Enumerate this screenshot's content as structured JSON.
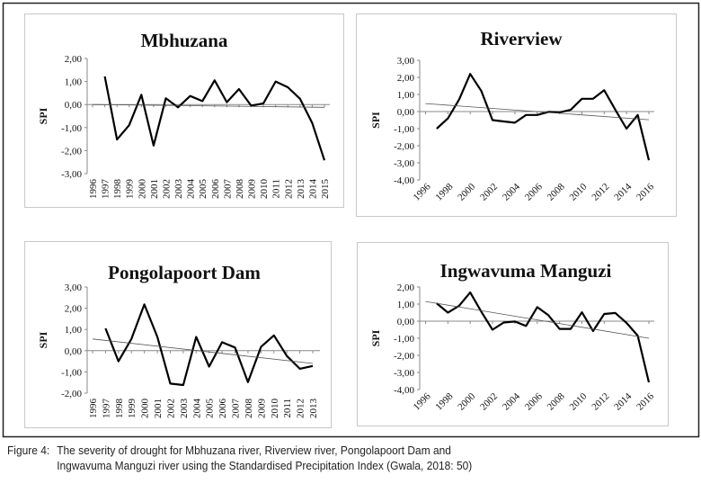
{
  "chart_data": [
    {
      "type": "line",
      "title": "Mbhuzana",
      "ylabel": "SPI",
      "xlabel": "",
      "ylim": [
        -3,
        2
      ],
      "yticks": [
        "2,00",
        "1,00",
        "0,00",
        "-1,00",
        "-2,00",
        "-3,00"
      ],
      "yticks_values": [
        2,
        1,
        0,
        -1,
        -2,
        -3
      ],
      "x_tick_labels": [
        "1996",
        "1997",
        "1998",
        "1999",
        "2000",
        "2001",
        "2002",
        "2003",
        "2004",
        "2005",
        "2006",
        "2007",
        "2008",
        "2009",
        "2010",
        "2011",
        "2012",
        "2013",
        "2014",
        "2015"
      ],
      "x_tick_rotation": "vertical",
      "series": [
        {
          "name": "SPI",
          "x": [
            1997,
            1998,
            1999,
            2000,
            2001,
            2002,
            2003,
            2004,
            2005,
            2006,
            2007,
            2008,
            2009,
            2010,
            2011,
            2012,
            2013,
            2014,
            2015
          ],
          "values": [
            1.22,
            -1.52,
            -0.9,
            0.42,
            -1.78,
            0.27,
            -0.12,
            0.37,
            0.15,
            1.05,
            0.1,
            0.67,
            -0.05,
            0.05,
            1.0,
            0.75,
            0.25,
            -0.8,
            -2.42
          ]
        },
        {
          "name": "Linear trend",
          "x": [
            1996,
            2015
          ],
          "values": [
            0.0,
            -0.12
          ]
        }
      ],
      "grid": false
    },
    {
      "type": "line",
      "title": "Riverview",
      "ylabel": "SPI",
      "xlabel": "",
      "ylim": [
        -4,
        3
      ],
      "yticks": [
        "3,00",
        "2,00",
        "1,00",
        "0,00",
        "-1,00",
        "-2,00",
        "-3,00",
        "-4,00"
      ],
      "yticks_values": [
        3,
        2,
        1,
        0,
        -1,
        -2,
        -3,
        -4
      ],
      "x_tick_labels": [
        "1996",
        "1998",
        "2000",
        "2002",
        "2004",
        "2006",
        "2008",
        "2010",
        "2012",
        "2014",
        "2016"
      ],
      "x_tick_rotation": "diagonal",
      "series": [
        {
          "name": "SPI",
          "x": [
            1997,
            1998,
            1999,
            2000,
            2001,
            2002,
            2003,
            2004,
            2005,
            2006,
            2007,
            2008,
            2009,
            2010,
            2011,
            2012,
            2013,
            2014,
            2015,
            2016
          ],
          "values": [
            -1.0,
            -0.4,
            0.7,
            2.2,
            1.2,
            -0.5,
            -0.58,
            -0.65,
            -0.2,
            -0.2,
            -0.02,
            -0.05,
            0.1,
            0.75,
            0.75,
            1.25,
            0.1,
            -1.0,
            -0.2,
            -2.85
          ]
        },
        {
          "name": "Linear trend",
          "x": [
            1996,
            2016
          ],
          "values": [
            0.47,
            -0.48
          ]
        }
      ],
      "grid": false
    },
    {
      "type": "line",
      "title": "Pongolapoort Dam",
      "ylabel": "SPI",
      "xlabel": "",
      "ylim": [
        -2,
        3
      ],
      "yticks": [
        "3,00",
        "2,00",
        "1,00",
        "0,00",
        "-1,00",
        "-2,00"
      ],
      "yticks_values": [
        3,
        2,
        1,
        0,
        -1,
        -2
      ],
      "x_tick_labels": [
        "1996",
        "1997",
        "1998",
        "1999",
        "2000",
        "2001",
        "2002",
        "2003",
        "2004",
        "2005",
        "2006",
        "2007",
        "2008",
        "2009",
        "2010",
        "2011",
        "2012",
        "2013"
      ],
      "x_tick_rotation": "vertical",
      "series": [
        {
          "name": "SPI",
          "x": [
            1997,
            1998,
            1999,
            2000,
            2001,
            2002,
            2003,
            2004,
            2005,
            2006,
            2007,
            2008,
            2009,
            2010,
            2011,
            2012,
            2013
          ],
          "values": [
            1.05,
            -0.5,
            0.55,
            2.18,
            0.65,
            -1.55,
            -1.62,
            0.65,
            -0.75,
            0.4,
            0.15,
            -1.48,
            0.18,
            0.72,
            -0.25,
            -0.85,
            -0.72
          ]
        },
        {
          "name": "Linear trend",
          "x": [
            1996,
            2013
          ],
          "values": [
            0.55,
            -0.6
          ]
        }
      ],
      "grid": false
    },
    {
      "type": "line",
      "title": "Ingwavuma Manguzi",
      "ylabel": "SPI",
      "xlabel": "",
      "ylim": [
        -4,
        2
      ],
      "yticks": [
        "2,00",
        "1,00",
        "0,00",
        "-1,00",
        "-2,00",
        "-3,00",
        "-4,00"
      ],
      "yticks_values": [
        2,
        1,
        0,
        -1,
        -2,
        -3,
        -4
      ],
      "x_tick_labels": [
        "1996",
        "1998",
        "2000",
        "2002",
        "2004",
        "2006",
        "2008",
        "2010",
        "2012",
        "2014",
        "2016"
      ],
      "x_tick_rotation": "diagonal",
      "series": [
        {
          "name": "SPI",
          "x": [
            1997,
            1998,
            1999,
            2000,
            2001,
            2002,
            2003,
            2004,
            2005,
            2006,
            2007,
            2008,
            2009,
            2010,
            2011,
            2012,
            2013,
            2014,
            2015,
            2016
          ],
          "values": [
            1.05,
            0.5,
            0.9,
            1.68,
            0.55,
            -0.5,
            -0.08,
            -0.02,
            -0.28,
            0.82,
            0.35,
            -0.45,
            -0.45,
            0.52,
            -0.58,
            0.42,
            0.48,
            -0.1,
            -0.85,
            -3.58
          ]
        },
        {
          "name": "Linear trend",
          "x": [
            1996,
            2016
          ],
          "values": [
            1.15,
            -1.0
          ]
        }
      ],
      "grid": false
    }
  ],
  "caption": {
    "label": "Figure 4:",
    "line1": "The severity of drought for Mbhuzana river, Riverview river, Pongolapoort Dam and",
    "line2": "Ingwavuma Manguzi river using the Standardised Precipitation Index (Gwala, 2018: 50)"
  }
}
